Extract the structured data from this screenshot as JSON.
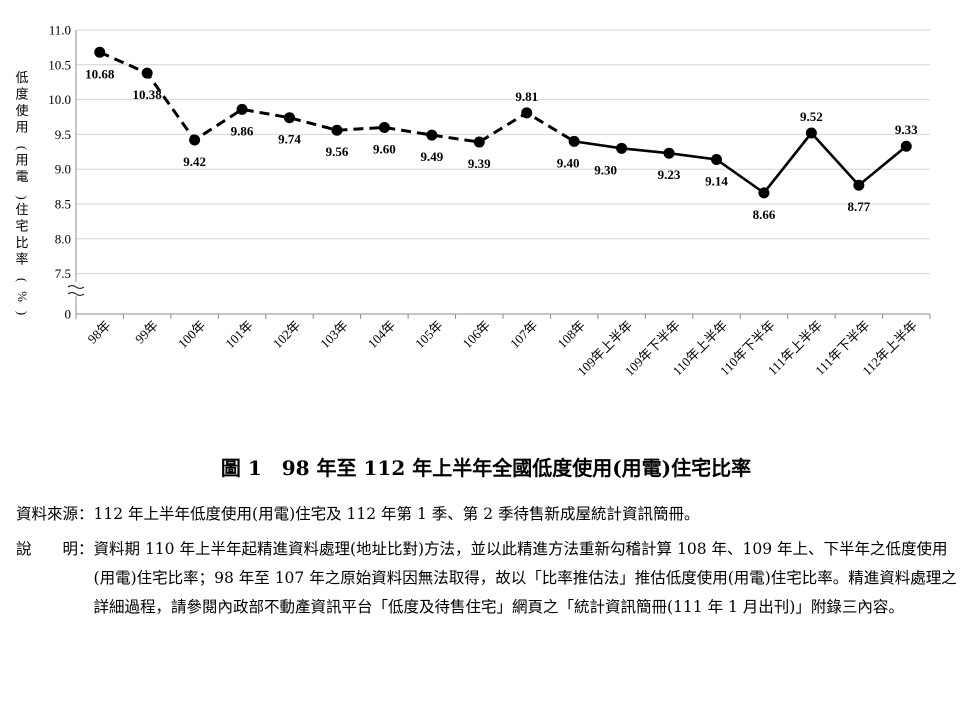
{
  "chart_data": {
    "type": "line",
    "ylabel": "低度使用(用電)住宅比率(%)",
    "ylim": [
      7.0,
      11.0
    ],
    "y_ticks": [
      "11.0",
      "10.5",
      "10.0",
      "9.5",
      "9.0",
      "8.5",
      "8.0",
      "7.5",
      "0"
    ],
    "categories": [
      "98年",
      "99年",
      "100年",
      "101年",
      "102年",
      "103年",
      "104年",
      "105年",
      "106年",
      "107年",
      "108年",
      "109年上半年",
      "109年下半年",
      "110年上半年",
      "110年下半年",
      "111年上半年",
      "111年下半年",
      "112年上半年"
    ],
    "values": [
      10.68,
      10.38,
      9.42,
      9.86,
      9.74,
      9.56,
      9.6,
      9.49,
      9.39,
      9.81,
      9.4,
      9.3,
      9.23,
      9.14,
      8.66,
      9.52,
      8.77,
      9.33
    ],
    "labels": [
      "10.68",
      "10.38",
      "9.42",
      "9.86",
      "9.74",
      "9.56",
      "9.60",
      "9.49",
      "9.39",
      "9.81",
      "9.40",
      "9.30",
      "9.23",
      "9.14",
      "8.66",
      "9.52",
      "8.77",
      "9.33"
    ],
    "segments": {
      "dashed_through_index": 10,
      "solid_from_index": 10
    },
    "grid": "horizontal",
    "axis_break": true,
    "marker": "circle"
  },
  "caption": "圖 1　98 年至 112 年上半年全國低度使用(用電)住宅比率",
  "source": {
    "label": "資料來源：",
    "text": "112 年上半年低度使用(用電)住宅及 112 年第 1 季、第 2 季待售新成屋統計資訊簡冊。"
  },
  "notes": {
    "label": "說　　明：",
    "text": "資料期 110 年上半年起精進資料處理(地址比對)方法，並以此精進方法重新勾稽計算 108 年、109 年上、下半年之低度使用(用電)住宅比率；98 年至 107 年之原始資料因無法取得，故以「比率推估法」推估低度使用(用電)住宅比率。精進資料處理之詳細過程，請參閱內政部不動產資訊平台「低度及待售住宅」網頁之「統計資訊簡冊(111 年 1 月出刊)」附錄三內容。"
  }
}
